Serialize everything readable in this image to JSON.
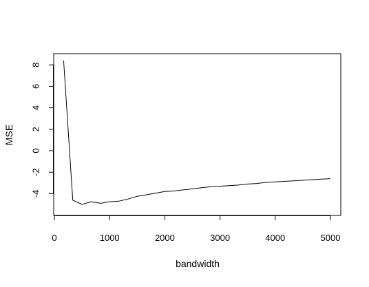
{
  "chart_data": {
    "type": "line",
    "title": "",
    "xlabel": "bandwidth",
    "ylabel": "MSE",
    "xlim": [
      0,
      5000
    ],
    "ylim": [
      -5.0,
      8.4
    ],
    "x_ticks": [
      0,
      1000,
      2000,
      3000,
      4000,
      5000
    ],
    "y_ticks": [
      -4,
      -2,
      0,
      2,
      4,
      6,
      8
    ],
    "grid": false,
    "legend": "none",
    "series": [
      {
        "color": "#000000",
        "x": [
          167,
          333,
          500,
          667,
          833,
          1000,
          1167,
          1333,
          1500,
          1667,
          1833,
          2000,
          2167,
          2333,
          2500,
          2667,
          2833,
          3000,
          3167,
          3333,
          3500,
          3667,
          3833,
          4000,
          4167,
          4333,
          4500,
          4667,
          4833,
          5000
        ],
        "y": [
          8.4,
          -4.6,
          -5.0,
          -4.75,
          -4.9,
          -4.75,
          -4.7,
          -4.5,
          -4.25,
          -4.1,
          -3.95,
          -3.8,
          -3.75,
          -3.65,
          -3.55,
          -3.45,
          -3.35,
          -3.3,
          -3.25,
          -3.2,
          -3.1,
          -3.05,
          -2.95,
          -2.9,
          -2.85,
          -2.8,
          -2.75,
          -2.7,
          -2.65,
          -2.6
        ]
      }
    ]
  }
}
